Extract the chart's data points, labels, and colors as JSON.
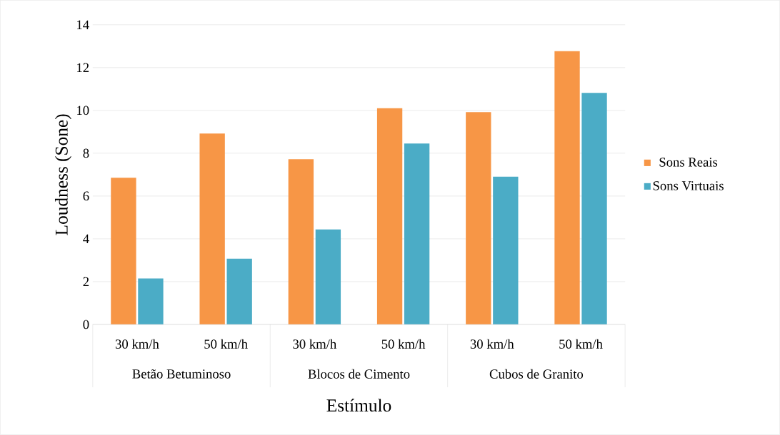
{
  "chart_data": {
    "type": "bar",
    "xlabel": "Estímulo",
    "ylabel": "Loudness (Sone)",
    "categories": [
      "30 km/h",
      "50 km/h",
      "30 km/h",
      "50 km/h",
      "30 km/h",
      "50 km/h"
    ],
    "annotations": [
      "Betão Betuminoso",
      "Blocos de Cimento",
      "Cubos de Granito"
    ],
    "series": [
      {
        "name": "Sons Reais",
        "color": "#f79646",
        "values": [
          6.85,
          8.92,
          7.72,
          10.1,
          9.92,
          12.77
        ]
      },
      {
        "name": "Sons Virtuais",
        "color": "#4bacc6",
        "values": [
          2.15,
          3.07,
          4.44,
          8.45,
          6.9,
          10.82
        ]
      }
    ],
    "ylim": [
      0,
      14
    ],
    "yticks": [
      0,
      2,
      4,
      6,
      8,
      10,
      12,
      14
    ],
    "grid": "y",
    "legend": "right"
  }
}
